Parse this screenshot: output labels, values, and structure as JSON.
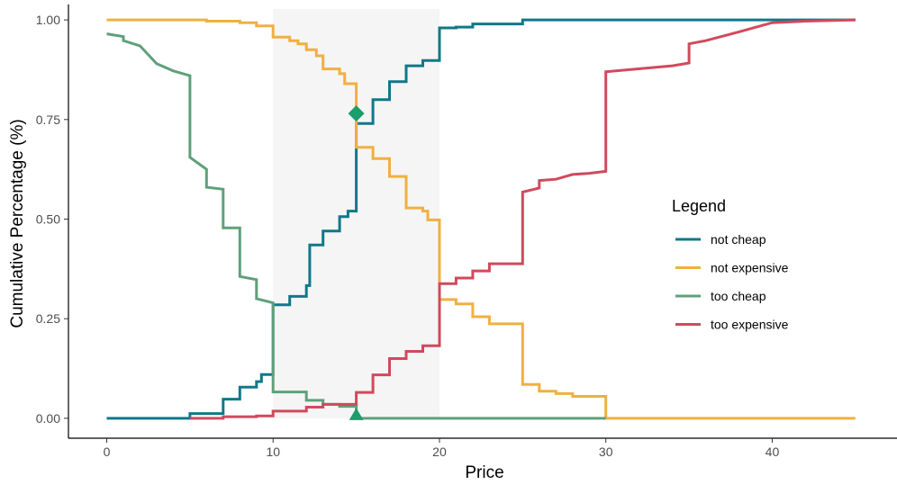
{
  "chart_data": {
    "type": "line",
    "step": true,
    "xlabel": "Price",
    "ylabel": "Cumulative Percentage (%)",
    "xlim": [
      -2.3,
      47.5
    ],
    "ylim": [
      -0.05,
      1.05
    ],
    "x_ticks": [
      0,
      10,
      20,
      30,
      40
    ],
    "x_tick_labels": [
      "0",
      "10",
      "20",
      "30",
      "40"
    ],
    "y_ticks": [
      0,
      0.25,
      0.5,
      0.75,
      1.0
    ],
    "y_tick_labels": [
      "0.00",
      "0.25",
      "0.50",
      "0.75",
      "1.00"
    ],
    "grid": false,
    "shaded_region": {
      "x": [
        10,
        20
      ],
      "color": "#f5f5f5"
    },
    "legend": {
      "title": "Legend",
      "position": "right",
      "entries": [
        {
          "label": "not cheap",
          "color": "#10788a"
        },
        {
          "label": "not expensive",
          "color": "#f0b040"
        },
        {
          "label": "too cheap",
          "color": "#5fa07a"
        },
        {
          "label": "too expensive",
          "color": "#d04a5c"
        }
      ]
    },
    "series": [
      {
        "name": "not cheap",
        "color": "#10788a",
        "points": [
          [
            0,
            0
          ],
          [
            5,
            0
          ],
          [
            5,
            0.012
          ],
          [
            7,
            0.012
          ],
          [
            7,
            0.048
          ],
          [
            8,
            0.048
          ],
          [
            8,
            0.078
          ],
          [
            9,
            0.078
          ],
          [
            9,
            0.092
          ],
          [
            9.3,
            0.092
          ],
          [
            9.3,
            0.11
          ],
          [
            10,
            0.11
          ],
          [
            10,
            0.285
          ],
          [
            11,
            0.285
          ],
          [
            11,
            0.306
          ],
          [
            12,
            0.306
          ],
          [
            12,
            0.333
          ],
          [
            12.2,
            0.333
          ],
          [
            12.2,
            0.435
          ],
          [
            13,
            0.435
          ],
          [
            13,
            0.47
          ],
          [
            14,
            0.47
          ],
          [
            14,
            0.506
          ],
          [
            14.5,
            0.506
          ],
          [
            14.5,
            0.52
          ],
          [
            15,
            0.52
          ],
          [
            15,
            0.74
          ],
          [
            16,
            0.74
          ],
          [
            16,
            0.8
          ],
          [
            17,
            0.8
          ],
          [
            17,
            0.845
          ],
          [
            18,
            0.845
          ],
          [
            18,
            0.885
          ],
          [
            19,
            0.885
          ],
          [
            19,
            0.898
          ],
          [
            20,
            0.898
          ],
          [
            20,
            0.98
          ],
          [
            21,
            0.98
          ],
          [
            21,
            0.982
          ],
          [
            22,
            0.982
          ],
          [
            22,
            0.99
          ],
          [
            25,
            0.99
          ],
          [
            25,
            1.0
          ],
          [
            45,
            1.0
          ]
        ]
      },
      {
        "name": "not expensive",
        "color": "#f0b040",
        "points": [
          [
            0,
            1.0
          ],
          [
            6,
            1.0
          ],
          [
            6,
            0.997
          ],
          [
            8,
            0.997
          ],
          [
            8,
            0.993
          ],
          [
            9,
            0.993
          ],
          [
            9,
            0.985
          ],
          [
            10,
            0.985
          ],
          [
            10,
            0.957
          ],
          [
            11,
            0.957
          ],
          [
            11,
            0.948
          ],
          [
            11.5,
            0.948
          ],
          [
            11.5,
            0.94
          ],
          [
            12,
            0.94
          ],
          [
            12,
            0.925
          ],
          [
            12.6,
            0.925
          ],
          [
            12.6,
            0.91
          ],
          [
            13,
            0.91
          ],
          [
            13,
            0.877
          ],
          [
            14,
            0.877
          ],
          [
            14,
            0.865
          ],
          [
            14.3,
            0.865
          ],
          [
            14.3,
            0.84
          ],
          [
            15,
            0.84
          ],
          [
            15,
            0.68
          ],
          [
            16,
            0.68
          ],
          [
            16,
            0.652
          ],
          [
            17,
            0.652
          ],
          [
            17,
            0.607
          ],
          [
            18,
            0.607
          ],
          [
            18,
            0.528
          ],
          [
            19,
            0.528
          ],
          [
            19,
            0.52
          ],
          [
            19.3,
            0.52
          ],
          [
            19.3,
            0.498
          ],
          [
            20,
            0.498
          ],
          [
            20,
            0.298
          ],
          [
            21,
            0.298
          ],
          [
            21,
            0.287
          ],
          [
            22,
            0.287
          ],
          [
            22,
            0.255
          ],
          [
            23,
            0.255
          ],
          [
            23,
            0.237
          ],
          [
            25,
            0.237
          ],
          [
            25,
            0.085
          ],
          [
            26,
            0.085
          ],
          [
            26,
            0.068
          ],
          [
            27,
            0.068
          ],
          [
            27,
            0.062
          ],
          [
            28,
            0.062
          ],
          [
            28,
            0.055
          ],
          [
            30,
            0.055
          ],
          [
            30,
            0.0
          ],
          [
            45,
            0.0
          ]
        ]
      },
      {
        "name": "too cheap",
        "color": "#5fa07a",
        "points": [
          [
            0,
            0.965
          ],
          [
            1,
            0.958
          ],
          [
            1,
            0.948
          ],
          [
            2,
            0.935
          ],
          [
            3,
            0.89
          ],
          [
            4,
            0.872
          ],
          [
            5,
            0.86
          ],
          [
            5,
            0.655
          ],
          [
            6,
            0.625
          ],
          [
            6,
            0.58
          ],
          [
            7,
            0.575
          ],
          [
            7,
            0.478
          ],
          [
            8,
            0.478
          ],
          [
            8,
            0.356
          ],
          [
            9,
            0.348
          ],
          [
            9,
            0.3
          ],
          [
            10,
            0.29
          ],
          [
            10,
            0.066
          ],
          [
            12,
            0.066
          ],
          [
            12,
            0.045
          ],
          [
            13,
            0.045
          ],
          [
            13,
            0.035
          ],
          [
            14,
            0.035
          ],
          [
            14,
            0.03
          ],
          [
            15,
            0.03
          ],
          [
            15,
            0.0
          ],
          [
            20,
            0.0
          ],
          [
            30,
            0.0
          ]
        ]
      },
      {
        "name": "too expensive",
        "color": "#d04a5c",
        "points": [
          [
            5,
            0.0
          ],
          [
            7,
            0.0
          ],
          [
            7,
            0.004
          ],
          [
            9,
            0.004
          ],
          [
            9,
            0.006
          ],
          [
            10,
            0.006
          ],
          [
            10,
            0.018
          ],
          [
            12,
            0.018
          ],
          [
            12,
            0.028
          ],
          [
            13,
            0.028
          ],
          [
            13,
            0.035
          ],
          [
            15,
            0.035
          ],
          [
            15,
            0.065
          ],
          [
            16,
            0.065
          ],
          [
            16,
            0.109
          ],
          [
            17,
            0.109
          ],
          [
            17,
            0.15
          ],
          [
            18,
            0.15
          ],
          [
            18,
            0.168
          ],
          [
            19,
            0.168
          ],
          [
            19,
            0.182
          ],
          [
            20,
            0.182
          ],
          [
            20,
            0.338
          ],
          [
            21,
            0.338
          ],
          [
            21,
            0.352
          ],
          [
            22,
            0.352
          ],
          [
            22,
            0.37
          ],
          [
            23,
            0.37
          ],
          [
            23,
            0.388
          ],
          [
            25,
            0.388
          ],
          [
            25,
            0.568
          ],
          [
            26,
            0.578
          ],
          [
            26,
            0.597
          ],
          [
            27,
            0.6
          ],
          [
            28,
            0.612
          ],
          [
            29,
            0.615
          ],
          [
            30,
            0.62
          ],
          [
            30,
            0.87
          ],
          [
            34,
            0.885
          ],
          [
            35,
            0.892
          ],
          [
            35,
            0.94
          ],
          [
            36,
            0.948
          ],
          [
            38,
            0.97
          ],
          [
            40,
            0.993
          ],
          [
            42,
            0.997
          ],
          [
            45,
            1.0
          ]
        ]
      }
    ],
    "markers": [
      {
        "shape": "diamond",
        "x": 15,
        "y": 0.765,
        "color": "#1a9e6b"
      },
      {
        "shape": "triangle",
        "x": 15,
        "y": 0.008,
        "color": "#1a9e6b"
      }
    ]
  }
}
